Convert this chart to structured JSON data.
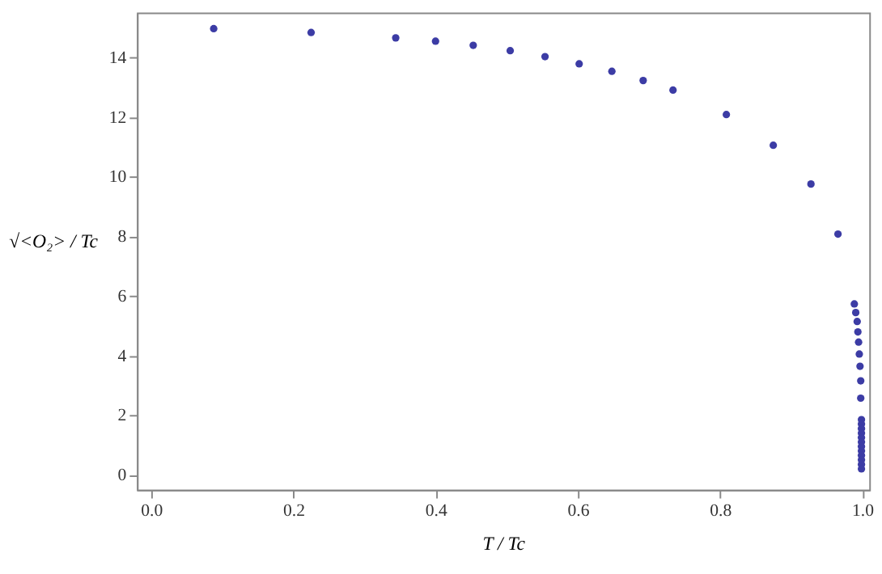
{
  "chart_data": {
    "type": "scatter",
    "xlabel": "T / Tc",
    "ylabel": "√<O₂> / Tc",
    "x": [
      0.088,
      0.225,
      0.344,
      0.4,
      0.453,
      0.505,
      0.554,
      0.602,
      0.648,
      0.692,
      0.734,
      0.809,
      0.875,
      0.928,
      0.966,
      0.989,
      0.991,
      0.993,
      0.994,
      0.995,
      0.996,
      0.997,
      0.998,
      0.998,
      0.999,
      0.999,
      0.999,
      0.999,
      0.999,
      0.999,
      0.999,
      0.999,
      0.999,
      0.999,
      0.999,
      0.999
    ],
    "series": [
      {
        "color": "#3c3ca5",
        "values": [
          14.96,
          14.83,
          14.65,
          14.54,
          14.4,
          14.22,
          14.02,
          13.78,
          13.53,
          13.22,
          12.9,
          12.08,
          11.05,
          9.75,
          8.07,
          5.73,
          5.44,
          5.14,
          4.79,
          4.45,
          4.05,
          3.64,
          3.15,
          2.57,
          1.85,
          1.7,
          1.55,
          1.4,
          1.25,
          1.1,
          0.95,
          0.8,
          0.65,
          0.5,
          0.35,
          0.2
        ]
      }
    ],
    "xlim": [
      -0.02,
      1.01
    ],
    "ylim": [
      -0.5,
      15.5
    ],
    "xticks": [
      {
        "value": 0,
        "label": "0.0"
      },
      0.2,
      0.4,
      0.6,
      0.8,
      {
        "value": 1,
        "label": "1.0"
      }
    ],
    "yticks": [
      0,
      2,
      4,
      6,
      8,
      10,
      12,
      14
    ],
    "grid": false,
    "legend": false,
    "marker": "circle"
  }
}
